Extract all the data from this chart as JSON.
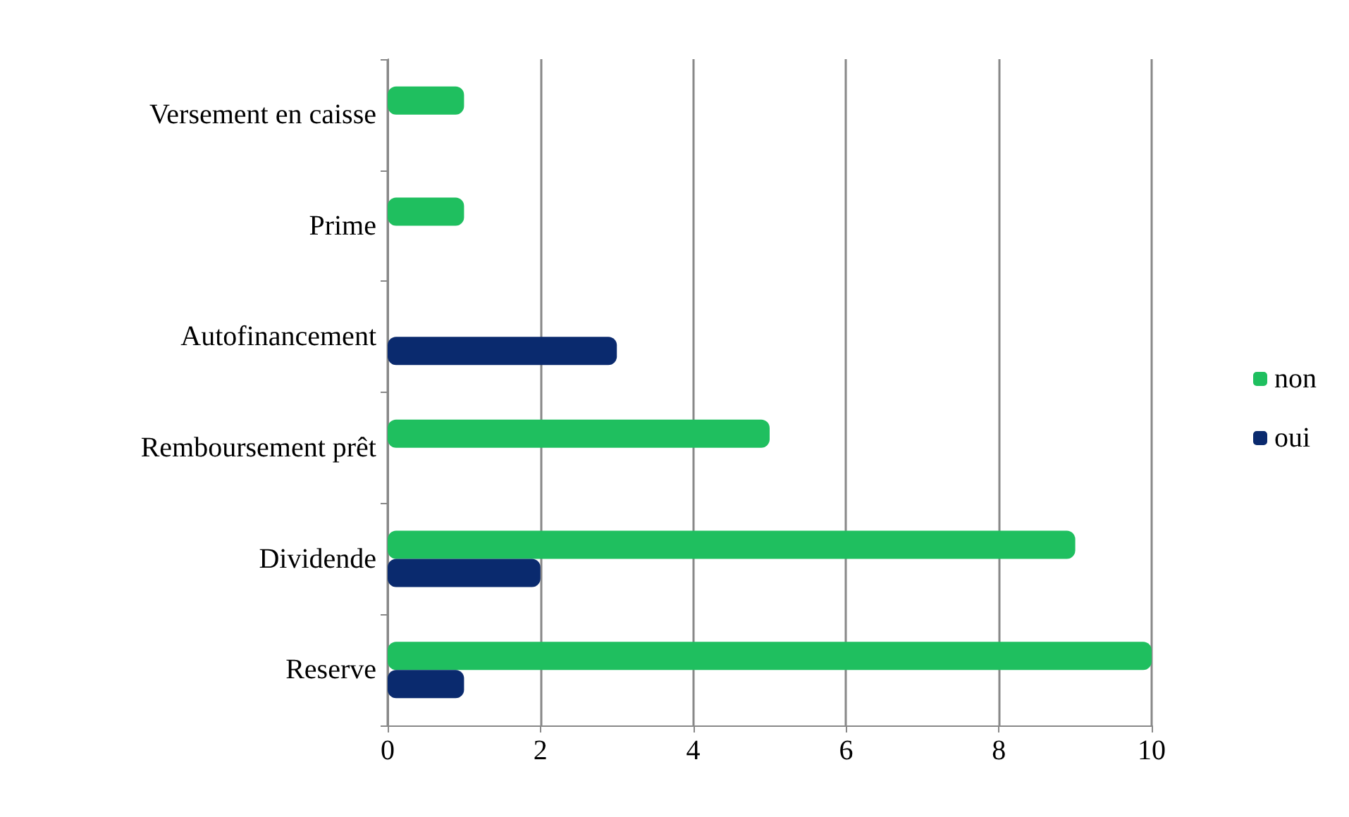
{
  "chart_data": {
    "type": "bar",
    "orientation": "horizontal",
    "categories": [
      "Versement en caisse",
      "Prime",
      "Autofinancement",
      "Remboursement prêt",
      "Dividende",
      "Reserve"
    ],
    "series": [
      {
        "name": "non",
        "color": "#1fbf5f",
        "values": [
          1,
          1,
          0,
          5,
          9,
          10
        ]
      },
      {
        "name": "oui",
        "color": "#0a2a6e",
        "values": [
          0,
          0,
          3,
          0,
          2,
          1
        ]
      }
    ],
    "xlim": [
      0,
      10
    ],
    "xticks": [
      0,
      2,
      4,
      6,
      8,
      10
    ],
    "grid": "x",
    "legend": "right"
  }
}
